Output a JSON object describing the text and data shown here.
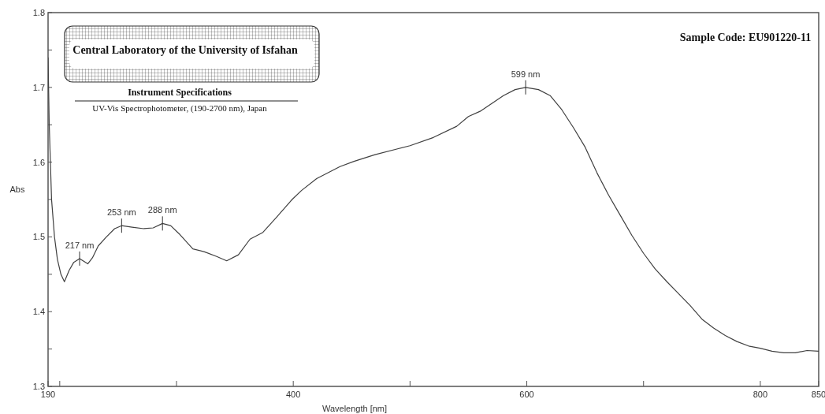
{
  "chart_data": {
    "type": "line",
    "xlabel": "Wavelength [nm]",
    "ylabel": "Abs",
    "xlim": [
      190,
      850
    ],
    "ylim": [
      1.3,
      1.8
    ],
    "xticks": [
      190,
      {
        "value": 200,
        "label": null
      },
      {
        "value": 300,
        "label": null
      },
      400,
      {
        "value": 500,
        "label": null
      },
      600,
      {
        "value": 700,
        "label": null
      },
      800,
      850
    ],
    "yticks": [
      1.3,
      {
        "value": 1.35,
        "label": null
      },
      1.4,
      {
        "value": 1.45,
        "label": null
      },
      1.5,
      {
        "value": 1.55,
        "label": null
      },
      1.6,
      {
        "value": 1.65,
        "label": null
      },
      1.7,
      {
        "value": 1.75,
        "label": null
      },
      1.8
    ],
    "grid": false,
    "marker": "none",
    "line_style": "solid",
    "series": [
      {
        "color": "#404040",
        "x": [
          190,
          191,
          193,
          195.5,
          198,
          201,
          204,
          208,
          212,
          217,
          220,
          224,
          228,
          233,
          240,
          247,
          253,
          262,
          272,
          280,
          288,
          295,
          303,
          314,
          324,
          334,
          343,
          353,
          363,
          374,
          385,
          399,
          407,
          420,
          440,
          452,
          470,
          490,
          500,
          520,
          540,
          550,
          560,
          580,
          590,
          599,
          610,
          620,
          630,
          640,
          650,
          660,
          670,
          680,
          690,
          700,
          710,
          720,
          730,
          740,
          750,
          760,
          770,
          780,
          790,
          800,
          810,
          820,
          830,
          840,
          850
        ],
        "values": [
          1.74,
          1.65,
          1.55,
          1.5,
          1.47,
          1.45,
          1.44,
          1.455,
          1.466,
          1.471,
          1.468,
          1.464,
          1.472,
          1.488,
          1.5,
          1.511,
          1.515,
          1.513,
          1.511,
          1.512,
          1.518,
          1.515,
          1.503,
          1.484,
          1.48,
          1.474,
          1.468,
          1.476,
          1.497,
          1.506,
          1.525,
          1.55,
          1.562,
          1.578,
          1.594,
          1.601,
          1.61,
          1.618,
          1.622,
          1.633,
          1.648,
          1.661,
          1.668,
          1.689,
          1.697,
          1.7,
          1.697,
          1.689,
          1.67,
          1.646,
          1.62,
          1.586,
          1.556,
          1.529,
          1.502,
          1.478,
          1.457,
          1.44,
          1.424,
          1.408,
          1.39,
          1.378,
          1.368,
          1.36,
          1.354,
          1.351,
          1.347,
          1.345,
          1.345,
          1.348,
          1.347
        ]
      }
    ],
    "annotations": [
      {
        "text": "217 nm",
        "x": 217,
        "y": 1.471
      },
      {
        "text": "253 nm",
        "x": 253,
        "y": 1.515
      },
      {
        "text": "288 nm",
        "x": 288,
        "y": 1.518
      },
      {
        "text": "599 nm",
        "x": 599,
        "y": 1.7
      },
      "Central Laboratory of the University of Isfahan",
      "Instrument Specifications",
      "UV-Vis Spectrophotometer, (190-2700 nm), Japan",
      "Sample Code: EU901220-11"
    ]
  }
}
